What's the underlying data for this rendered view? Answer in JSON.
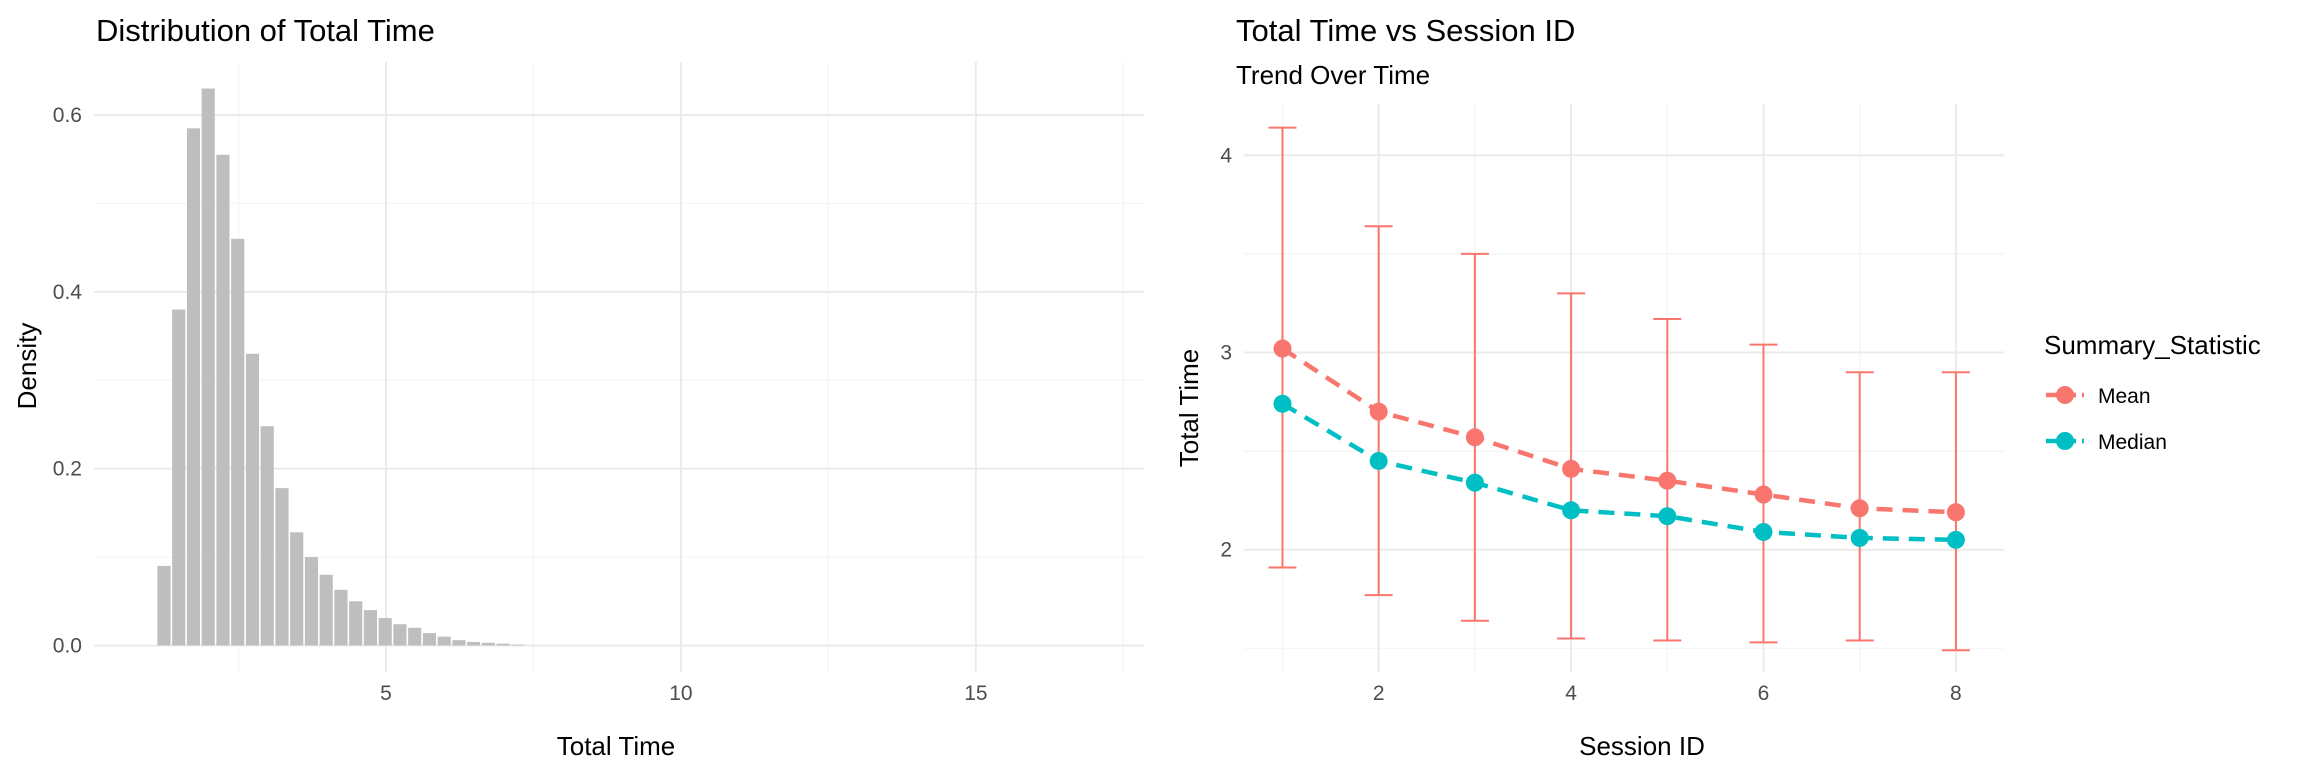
{
  "chart_data": [
    {
      "type": "bar",
      "title": "Distribution of Total Time",
      "xlabel": "Total Time",
      "ylabel": "Density",
      "xlim": [
        0.05,
        17.85
      ],
      "ylim": [
        -0.03,
        0.66
      ],
      "x_ticks": [
        5,
        10,
        15
      ],
      "y_ticks": [
        0.0,
        0.2,
        0.4,
        0.6
      ],
      "y_tick_labels": [
        "0.0",
        "0.2",
        "0.4",
        "0.6"
      ],
      "bin_width": 0.25,
      "bin_start": 1.125,
      "values": [
        0.09,
        0.38,
        0.585,
        0.63,
        0.555,
        0.46,
        0.33,
        0.248,
        0.178,
        0.128,
        0.1,
        0.08,
        0.063,
        0.05,
        0.04,
        0.031,
        0.024,
        0.02,
        0.014,
        0.01,
        0.006,
        0.004,
        0.003,
        0.002,
        0.001
      ],
      "bar_color": "#bebebe",
      "grid": true
    },
    {
      "type": "line",
      "title": "Total Time vs Session ID",
      "subtitle": "Trend Over Time",
      "xlabel": "Session ID",
      "ylabel": "Total Time",
      "xlim": [
        0.6,
        8.5
      ],
      "ylim": [
        1.38,
        4.26
      ],
      "x_ticks": [
        2,
        4,
        6,
        8
      ],
      "y_ticks": [
        2,
        3,
        4
      ],
      "x": [
        1,
        2,
        3,
        4,
        5,
        6,
        7,
        8
      ],
      "series": [
        {
          "name": "Mean",
          "color": "#f8766d",
          "values": [
            3.02,
            2.7,
            2.57,
            2.41,
            2.35,
            2.28,
            2.21,
            2.19
          ]
        },
        {
          "name": "Median",
          "color": "#00bfc4",
          "values": [
            2.74,
            2.45,
            2.34,
            2.2,
            2.17,
            2.09,
            2.06,
            2.05
          ]
        }
      ],
      "error_bars": {
        "color": "#f8766d",
        "lower": [
          1.91,
          1.77,
          1.64,
          1.55,
          1.54,
          1.53,
          1.54,
          1.49
        ],
        "upper": [
          4.14,
          3.64,
          3.5,
          3.3,
          3.17,
          3.04,
          2.9,
          2.9
        ]
      },
      "legend": {
        "title": "Summary_Statistic",
        "position": "right"
      },
      "grid": true
    }
  ]
}
